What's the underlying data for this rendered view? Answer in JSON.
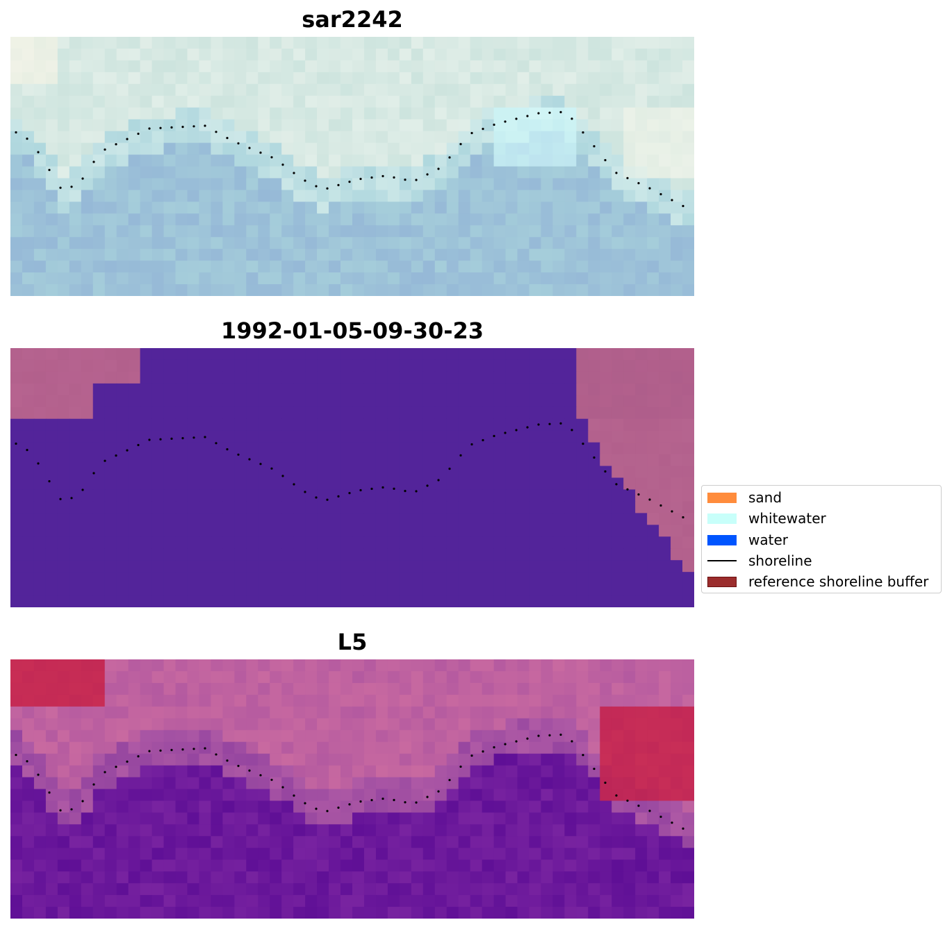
{
  "panels": [
    {
      "title": "sar2242",
      "kind": "rgb"
    },
    {
      "title": "1992-01-05-09-30-23",
      "kind": "classes"
    },
    {
      "title": "L5",
      "kind": "index"
    }
  ],
  "legend": {
    "items": [
      {
        "label": "sand",
        "color": "#ff8c3c",
        "type": "patch"
      },
      {
        "label": "whitewater",
        "color": "#c8fffa",
        "type": "patch"
      },
      {
        "label": "water",
        "color": "#0055ff",
        "type": "patch"
      },
      {
        "label": "shoreline",
        "color": "#000000",
        "type": "line"
      },
      {
        "label": "reference shoreline buffer",
        "color": "#9b2d2d",
        "type": "patch"
      }
    ]
  },
  "colors": {
    "water_class": "#53249a",
    "land_class": "#b0608c",
    "shoreline": "#000000"
  }
}
